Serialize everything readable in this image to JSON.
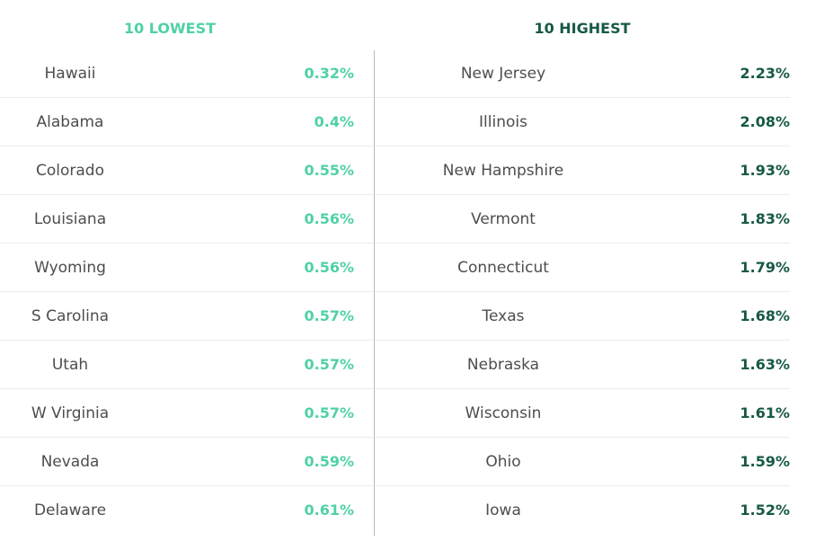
{
  "colors": {
    "lowest_accent": "#4fd1a5",
    "highest_accent": "#175946",
    "state_text": "#4d4d4d"
  },
  "lowest": {
    "title": "10 LOWEST",
    "rows": [
      {
        "state": "Hawaii",
        "value": "0.32%"
      },
      {
        "state": "Alabama",
        "value": "0.4%"
      },
      {
        "state": "Colorado",
        "value": "0.55%"
      },
      {
        "state": "Louisiana",
        "value": "0.56%"
      },
      {
        "state": "Wyoming",
        "value": "0.56%"
      },
      {
        "state": "S Carolina",
        "value": "0.57%"
      },
      {
        "state": "Utah",
        "value": "0.57%"
      },
      {
        "state": "W Virginia",
        "value": "0.57%"
      },
      {
        "state": "Nevada",
        "value": "0.59%"
      },
      {
        "state": "Delaware",
        "value": "0.61%"
      }
    ]
  },
  "highest": {
    "title": "10 HIGHEST",
    "rows": [
      {
        "state": "New Jersey",
        "value": "2.23%"
      },
      {
        "state": "Illinois",
        "value": "2.08%"
      },
      {
        "state": "New Hampshire",
        "value": "1.93%"
      },
      {
        "state": "Vermont",
        "value": "1.83%"
      },
      {
        "state": "Connecticut",
        "value": "1.79%"
      },
      {
        "state": "Texas",
        "value": "1.68%"
      },
      {
        "state": "Nebraska",
        "value": "1.63%"
      },
      {
        "state": "Wisconsin",
        "value": "1.61%"
      },
      {
        "state": "Ohio",
        "value": "1.59%"
      },
      {
        "state": "Iowa",
        "value": "1.52%"
      }
    ]
  },
  "chart_data": {
    "type": "table",
    "columns": [
      "10 LOWEST",
      "10 HIGHEST"
    ],
    "lowest": [
      {
        "state": "Hawaii",
        "value": 0.32
      },
      {
        "state": "Alabama",
        "value": 0.4
      },
      {
        "state": "Colorado",
        "value": 0.55
      },
      {
        "state": "Louisiana",
        "value": 0.56
      },
      {
        "state": "Wyoming",
        "value": 0.56
      },
      {
        "state": "S Carolina",
        "value": 0.57
      },
      {
        "state": "Utah",
        "value": 0.57
      },
      {
        "state": "W Virginia",
        "value": 0.57
      },
      {
        "state": "Nevada",
        "value": 0.59
      },
      {
        "state": "Delaware",
        "value": 0.61
      }
    ],
    "highest": [
      {
        "state": "New Jersey",
        "value": 2.23
      },
      {
        "state": "Illinois",
        "value": 2.08
      },
      {
        "state": "New Hampshire",
        "value": 1.93
      },
      {
        "state": "Vermont",
        "value": 1.83
      },
      {
        "state": "Connecticut",
        "value": 1.79
      },
      {
        "state": "Texas",
        "value": 1.68
      },
      {
        "state": "Nebraska",
        "value": 1.63
      },
      {
        "state": "Wisconsin",
        "value": 1.61
      },
      {
        "state": "Ohio",
        "value": 1.59
      },
      {
        "state": "Iowa",
        "value": 1.52
      }
    ]
  }
}
